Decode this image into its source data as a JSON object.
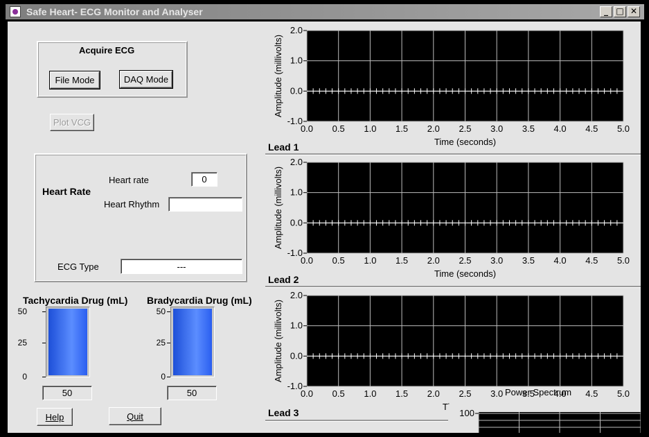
{
  "window": {
    "title": "Safe Heart-  ECG Monitor and Analyser",
    "buttons": {
      "minimize": "_",
      "maximize": "□",
      "close": "✕"
    }
  },
  "acquire": {
    "title": "Acquire ECG",
    "file_mode": "File Mode",
    "daq_mode": "DAQ Mode"
  },
  "plot_vcg": "Plot VCG",
  "heart": {
    "section_title": "Heart Rate",
    "rate_label": "Heart rate",
    "rate_value": "0",
    "rhythm_label": "Heart Rhythm",
    "rhythm_value": "",
    "ecg_type_label": "ECG Type",
    "ecg_type_value": "---"
  },
  "tachy": {
    "title": "Tachycardia Drug (mL)",
    "ticks": [
      "50",
      "25",
      "0"
    ],
    "level": 1.0,
    "value": "50"
  },
  "brady": {
    "title": "Bradycardia Drug (mL)",
    "ticks": [
      "50",
      "25",
      "0"
    ],
    "level": 1.0,
    "value": "50"
  },
  "buttons": {
    "help": "Help",
    "quit": "Quit"
  },
  "chart_data": [
    {
      "type": "line",
      "title": "Lead 1",
      "xlabel": "Time (seconds)",
      "ylabel": "Amplitude (millivolts)",
      "xlim": [
        0,
        5
      ],
      "ylim": [
        -1,
        2
      ],
      "x_ticks": [
        "0.0",
        "0.5",
        "1.0",
        "1.5",
        "2.0",
        "2.5",
        "3.0",
        "3.5",
        "4.0",
        "4.5",
        "5.0"
      ],
      "y_ticks": [
        "2.0",
        "1.0",
        "0.0",
        "-1.0"
      ],
      "grid": true,
      "series": [
        {
          "x": [
            0,
            5
          ],
          "y": [
            0,
            0
          ]
        }
      ],
      "background": "#000000"
    },
    {
      "type": "line",
      "title": "Lead 2",
      "xlabel": "Time (seconds)",
      "ylabel": "Amplitude (millivolts)",
      "xlim": [
        0,
        5
      ],
      "ylim": [
        -1,
        2
      ],
      "x_ticks": [
        "0.0",
        "0.5",
        "1.0",
        "1.5",
        "2.0",
        "2.5",
        "3.0",
        "3.5",
        "4.0",
        "4.5",
        "5.0"
      ],
      "y_ticks": [
        "2.0",
        "1.0",
        "0.0",
        "-1.0"
      ],
      "grid": true,
      "series": [
        {
          "x": [
            0,
            5
          ],
          "y": [
            0,
            0
          ]
        }
      ],
      "background": "#000000"
    },
    {
      "type": "line",
      "title": "Lead 3",
      "xlabel": "Tim",
      "ylabel": "Amplitude (millivolts)",
      "xlim": [
        0,
        5
      ],
      "ylim": [
        -1,
        2
      ],
      "x_ticks": [
        "0.0",
        "0.5",
        "1.0",
        "1.5",
        "2.0",
        "2.5",
        "3.0",
        "3.5",
        "4.0",
        "4.5",
        "5.0"
      ],
      "y_ticks": [
        "2.0",
        "1.0",
        "0.0",
        "-1.0"
      ],
      "grid": true,
      "series": [
        {
          "x": [
            0,
            5
          ],
          "y": [
            0,
            0
          ]
        }
      ],
      "background": "#000000"
    },
    {
      "type": "line",
      "title": "Power Spectrum",
      "y_ticks": [
        "100"
      ],
      "grid": true,
      "background": "#000000"
    }
  ],
  "colors": {
    "plot_bg": "#000000",
    "grid": "#bdbdbd",
    "trace": "#ffffff",
    "tank_fill": "#2a5ef0",
    "panel": "#e4e4e4"
  }
}
